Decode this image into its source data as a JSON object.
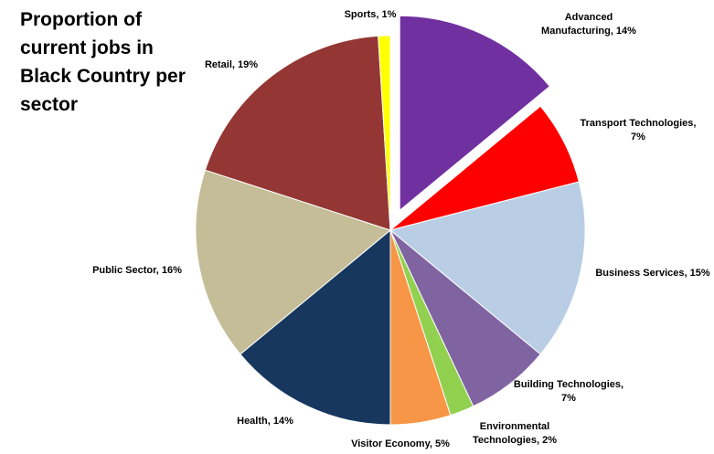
{
  "chart_data": {
    "type": "pie",
    "title": "Proportion of current jobs in Black Country per sector",
    "start_angle_deg": 0,
    "direction": "clockwise",
    "legend": "none",
    "exploded_slice": "Advanced Manufacturing",
    "slices": [
      {
        "name": "Advanced Manufacturing",
        "value": 14,
        "label_lines": [
          "Advanced",
          "Manufacturing, 14%"
        ],
        "color": "#7030A0"
      },
      {
        "name": "Transport Technologies",
        "value": 7,
        "label_lines": [
          "Transport Technologies,",
          "7%"
        ],
        "color": "#FF0000"
      },
      {
        "name": "Business Services",
        "value": 15,
        "label_lines": [
          "Business Services, 15%"
        ],
        "color": "#B9CDE5"
      },
      {
        "name": "Building Technologies",
        "value": 7,
        "label_lines": [
          "Building Technologies,",
          "7%"
        ],
        "color": "#8064A2"
      },
      {
        "name": "Environmental Technologies",
        "value": 2,
        "label_lines": [
          "Environmental",
          "Technologies, 2%"
        ],
        "color": "#92D050"
      },
      {
        "name": "Visitor Economy",
        "value": 5,
        "label_lines": [
          "Visitor Economy, 5%"
        ],
        "color": "#F79646"
      },
      {
        "name": "Health",
        "value": 14,
        "label_lines": [
          "Health, 14%"
        ],
        "color": "#17375E"
      },
      {
        "name": "Public Sector",
        "value": 16,
        "label_lines": [
          "Public Sector, 16%"
        ],
        "color": "#C4BD97"
      },
      {
        "name": "Retail",
        "value": 19,
        "label_lines": [
          "Retail, 19%"
        ],
        "color": "#943634"
      },
      {
        "name": "Sports",
        "value": 1,
        "label_lines": [
          "Sports, 1%"
        ],
        "color": "#FFFF00"
      }
    ]
  }
}
